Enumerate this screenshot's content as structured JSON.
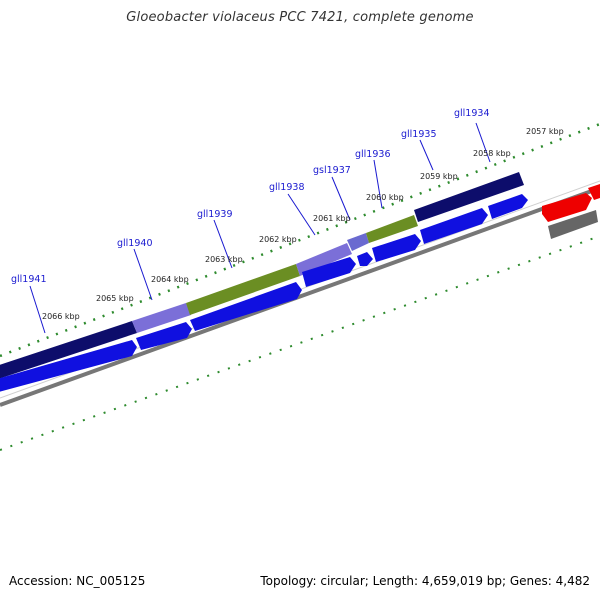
{
  "title": "Gloeobacter violaceus PCC 7421, complete genome",
  "footer": {
    "accession": "Accession: NC_005125",
    "summary": "Topology: circular; Length: 4,659,019 bp; Genes: 4,482"
  },
  "kbp_labels": [
    "2057 kbp",
    "2058 kbp",
    "2059 kbp",
    "2060 kbp",
    "2061 kbp",
    "2062 kbp",
    "2063 kbp",
    "2064 kbp",
    "2065 kbp",
    "2066 kbp"
  ],
  "gene_labels": [
    "gll1934",
    "gll1935",
    "gll1936",
    "gsl1937",
    "gll1938",
    "gll1939",
    "gll1940",
    "gll1941"
  ],
  "colors": {
    "cog_dark_navy": "#0d0d6b",
    "cog_lavender": "#7b6fd8",
    "cog_olive": "#6b8e23",
    "cds_blue": "#1010e0",
    "rrna_red": "#ee0000",
    "backbone_gray": "#888888",
    "tick_green": "#2e8b2e",
    "label_blue": "#1a1ad0"
  }
}
